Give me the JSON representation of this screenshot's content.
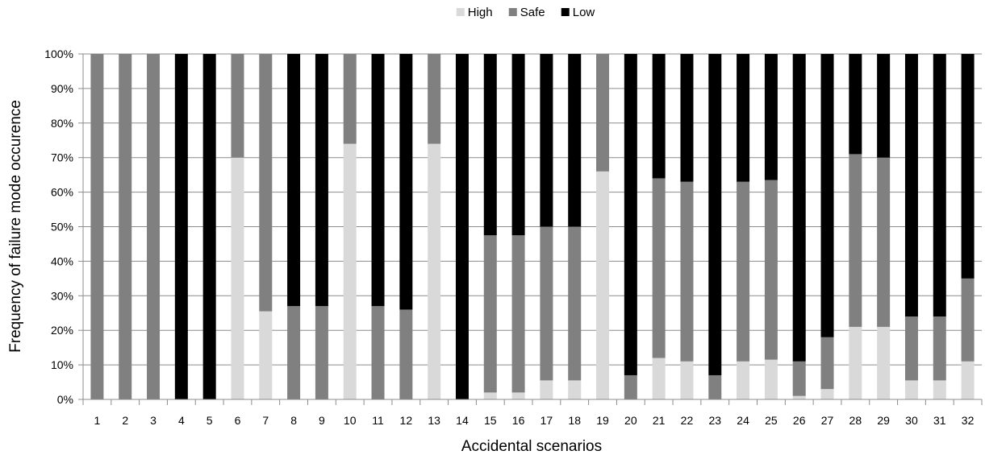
{
  "chart_data": {
    "type": "bar",
    "stacked": true,
    "percent": true,
    "title": "",
    "xlabel": "Accidental scenarios",
    "ylabel": "Frequency of failure mode occurence",
    "ylim": [
      0,
      100
    ],
    "yticks": [
      "0%",
      "10%",
      "20%",
      "30%",
      "40%",
      "50%",
      "60%",
      "70%",
      "80%",
      "90%",
      "100%"
    ],
    "grid": "horizontal",
    "legend_position": "top-center",
    "categories": [
      "1",
      "2",
      "3",
      "4",
      "5",
      "6",
      "7",
      "8",
      "9",
      "10",
      "11",
      "12",
      "13",
      "14",
      "15",
      "16",
      "17",
      "18",
      "19",
      "20",
      "21",
      "22",
      "23",
      "24",
      "25",
      "26",
      "27",
      "28",
      "29",
      "30",
      "31",
      "32"
    ],
    "series": [
      {
        "name": "High",
        "color": "#d9d9d9",
        "values": [
          0,
          0,
          0,
          0,
          0,
          70,
          25.5,
          0,
          0,
          74,
          0,
          0,
          74,
          0,
          2,
          2,
          5.5,
          5.5,
          66,
          0,
          12,
          11,
          0,
          11,
          11.5,
          1,
          3,
          21,
          21,
          5.5,
          5.5,
          11
        ]
      },
      {
        "name": "Safe",
        "color": "#808080",
        "values": [
          100,
          100,
          100,
          0,
          0,
          30,
          74.5,
          27,
          27,
          26,
          27,
          26,
          26,
          0,
          45.5,
          45.5,
          44.5,
          44.5,
          34,
          7,
          52,
          52,
          7,
          52,
          52,
          10,
          15,
          50,
          49,
          18.5,
          18.5,
          24
        ]
      },
      {
        "name": "Low",
        "color": "#000000",
        "values": [
          0,
          0,
          0,
          100,
          100,
          0,
          0,
          73,
          73,
          0,
          73,
          74,
          0,
          100,
          52.5,
          52.5,
          50,
          50,
          0,
          93,
          36,
          37,
          93,
          37,
          36.5,
          89,
          82,
          29,
          30,
          76,
          76,
          65
        ]
      }
    ]
  }
}
